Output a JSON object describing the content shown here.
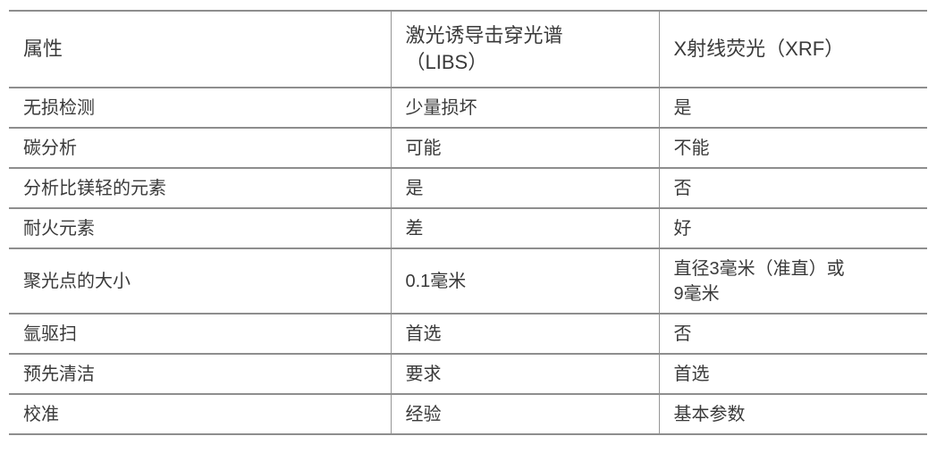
{
  "colors": {
    "background": "#ffffff",
    "text": "#3a3a3a",
    "border": "#8e8e8e"
  },
  "table": {
    "headers": [
      "属性",
      "激光诱导击穿光谱\n（LIBS）",
      "X射线荧光（XRF）"
    ],
    "rows": [
      {
        "cells": [
          "无损检测",
          "少量损坏",
          "是"
        ]
      },
      {
        "cells": [
          "碳分析",
          "可能",
          "不能"
        ]
      },
      {
        "cells": [
          "分析比镁轻的元素",
          "是",
          "否"
        ]
      },
      {
        "cells": [
          "耐火元素",
          "差",
          "好"
        ]
      },
      {
        "cells": [
          "聚光点的大小",
          "0.1毫米",
          "直径3毫米（准直）或\n9毫米"
        ]
      },
      {
        "cells": [
          "氩驱扫",
          "首选",
          "否"
        ]
      },
      {
        "cells": [
          "预先清洁",
          "要求",
          "首选"
        ]
      },
      {
        "cells": [
          "校准",
          "经验",
          "基本参数"
        ]
      }
    ]
  }
}
